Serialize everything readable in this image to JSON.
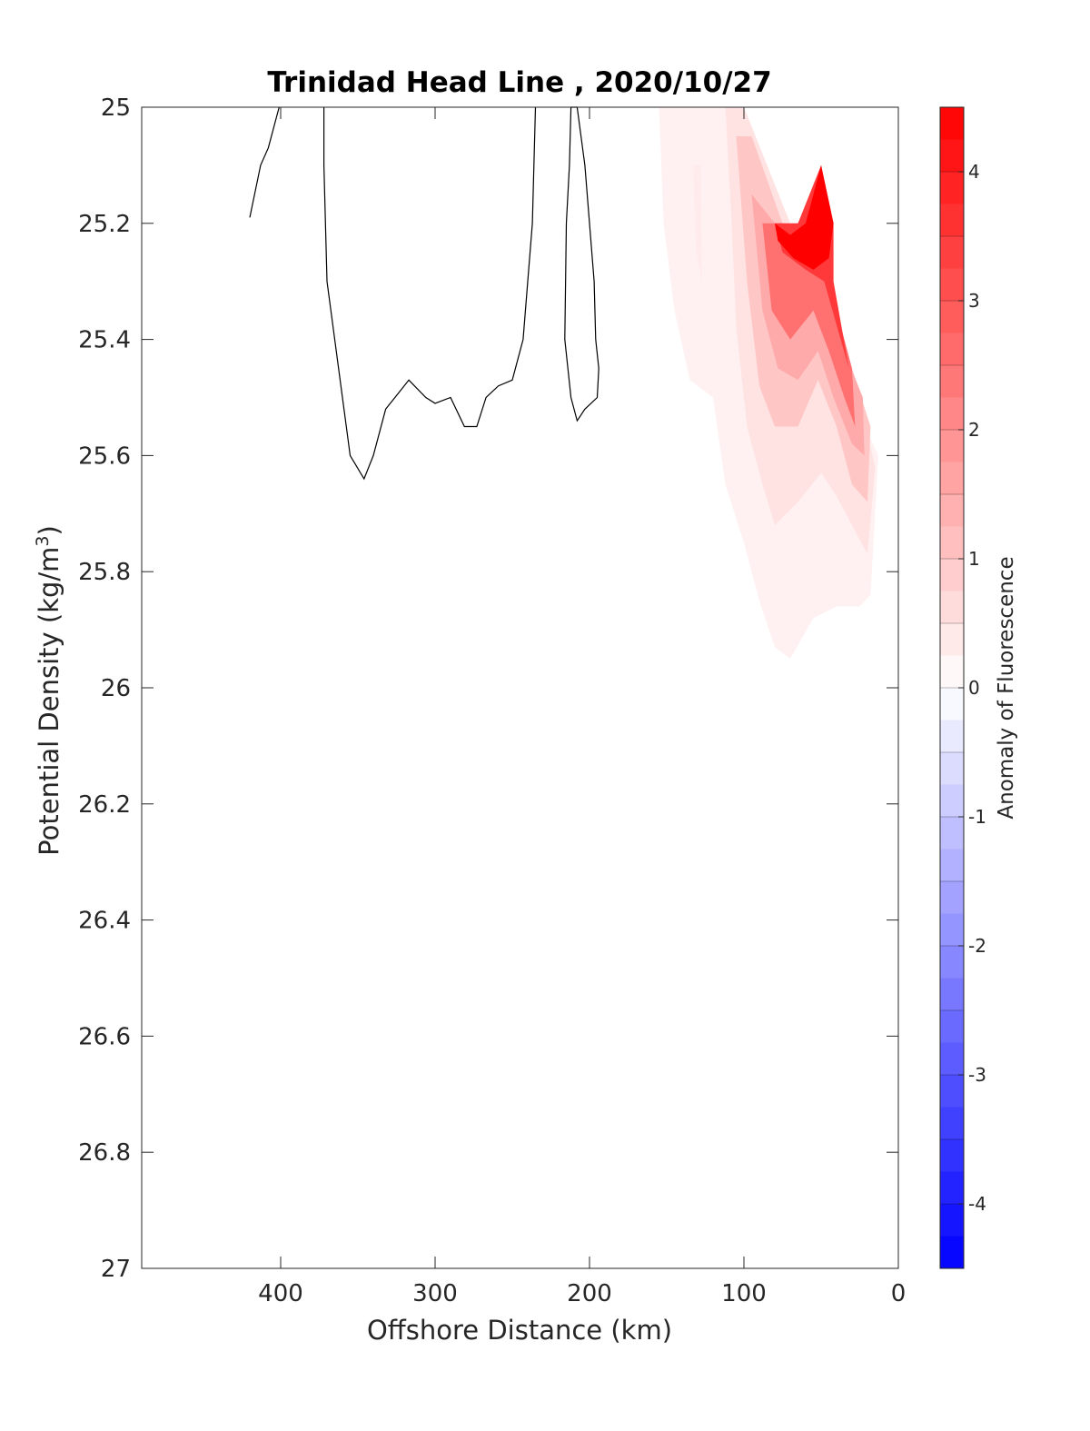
{
  "chart_data": {
    "type": "heatmap",
    "title": "Trinidad Head Line , 2020/10/27",
    "xlabel": "Offshore Distance (km)",
    "ylabel_main": "Potential Density (kg/m",
    "ylabel_sup": "3",
    "ylabel_tail": ")",
    "xlim": [
      490,
      0
    ],
    "x_reversed": true,
    "ylim": [
      25,
      27
    ],
    "y_reversed": true,
    "xticks": [
      {
        "value": 400,
        "label": "400"
      },
      {
        "value": 300,
        "label": "300"
      },
      {
        "value": 200,
        "label": "200"
      },
      {
        "value": 100,
        "label": "100"
      },
      {
        "value": 0,
        "label": "0"
      }
    ],
    "yticks": [
      {
        "value": 25.0,
        "label": "25"
      },
      {
        "value": 25.2,
        "label": "25.2"
      },
      {
        "value": 25.4,
        "label": "25.4"
      },
      {
        "value": 25.6,
        "label": "25.6"
      },
      {
        "value": 25.8,
        "label": "25.8"
      },
      {
        "value": 26.0,
        "label": "26"
      },
      {
        "value": 26.2,
        "label": "26.2"
      },
      {
        "value": 26.4,
        "label": "26.4"
      },
      {
        "value": 26.6,
        "label": "26.6"
      },
      {
        "value": 26.8,
        "label": "26.8"
      },
      {
        "value": 27.0,
        "label": "27"
      }
    ],
    "colorbar": {
      "label": "Anomaly of Fluorescence",
      "range": [
        -4.5,
        4.5
      ],
      "step": 0.25,
      "min_color": "#0000ff",
      "mid_color": "#ffffff",
      "max_color": "#ff0000",
      "ticks": [
        {
          "value": 4,
          "label": "4"
        },
        {
          "value": 3,
          "label": "3"
        },
        {
          "value": 2,
          "label": "2"
        },
        {
          "value": 1,
          "label": "1"
        },
        {
          "value": 0,
          "label": "0"
        },
        {
          "value": -1,
          "label": "-1"
        },
        {
          "value": -2,
          "label": "-2"
        },
        {
          "value": -3,
          "label": "-3"
        },
        {
          "value": -4,
          "label": "-4"
        }
      ]
    },
    "filled_contours": [
      {
        "level": 0.25,
        "points": [
          [
            155,
            25.0
          ],
          [
            152,
            25.2
          ],
          [
            145,
            25.35
          ],
          [
            135,
            25.47
          ],
          [
            120,
            25.5
          ],
          [
            112,
            25.65
          ],
          [
            100,
            25.75
          ],
          [
            90,
            25.85
          ],
          [
            80,
            25.93
          ],
          [
            70,
            25.95
          ],
          [
            55,
            25.88
          ],
          [
            40,
            25.86
          ],
          [
            25,
            25.86
          ],
          [
            18,
            25.84
          ],
          [
            13,
            25.6
          ],
          [
            30,
            25.5
          ],
          [
            55,
            25.3
          ],
          [
            80,
            25.2
          ],
          [
            100,
            25.0
          ]
        ]
      },
      {
        "level": 0.5,
        "points": [
          [
            112,
            25.0
          ],
          [
            108,
            25.2
          ],
          [
            105,
            25.38
          ],
          [
            98,
            25.55
          ],
          [
            88,
            25.65
          ],
          [
            80,
            25.72
          ],
          [
            65,
            25.68
          ],
          [
            50,
            25.63
          ],
          [
            40,
            25.67
          ],
          [
            30,
            25.72
          ],
          [
            20,
            25.77
          ],
          [
            15,
            25.62
          ],
          [
            25,
            25.5
          ],
          [
            45,
            25.3
          ],
          [
            70,
            25.2
          ],
          [
            100,
            25.0
          ]
        ]
      },
      {
        "level": 1.0,
        "points": [
          [
            105,
            25.05
          ],
          [
            98,
            25.3
          ],
          [
            90,
            25.48
          ],
          [
            80,
            25.55
          ],
          [
            65,
            25.55
          ],
          [
            52,
            25.47
          ],
          [
            40,
            25.55
          ],
          [
            30,
            25.65
          ],
          [
            20,
            25.68
          ],
          [
            18,
            25.55
          ],
          [
            30,
            25.45
          ],
          [
            50,
            25.3
          ],
          [
            75,
            25.2
          ],
          [
            95,
            25.05
          ]
        ]
      },
      {
        "level": 1.5,
        "points": [
          [
            95,
            25.15
          ],
          [
            88,
            25.35
          ],
          [
            78,
            25.45
          ],
          [
            65,
            25.47
          ],
          [
            52,
            25.42
          ],
          [
            42,
            25.5
          ],
          [
            30,
            25.58
          ],
          [
            22,
            25.6
          ],
          [
            23,
            25.5
          ],
          [
            35,
            25.42
          ],
          [
            55,
            25.3
          ],
          [
            80,
            25.2
          ]
        ]
      },
      {
        "level": 2.5,
        "points": [
          [
            88,
            25.2
          ],
          [
            82,
            25.35
          ],
          [
            70,
            25.4
          ],
          [
            55,
            25.35
          ],
          [
            45,
            25.42
          ],
          [
            35,
            25.5
          ],
          [
            28,
            25.55
          ],
          [
            30,
            25.45
          ],
          [
            42,
            25.33
          ],
          [
            60,
            25.22
          ],
          [
            75,
            25.2
          ]
        ]
      },
      {
        "level": 3.5,
        "points": [
          [
            80,
            25.2
          ],
          [
            65,
            25.2
          ],
          [
            50,
            25.1
          ],
          [
            42,
            25.2
          ],
          [
            42,
            25.3
          ],
          [
            32,
            25.45
          ],
          [
            48,
            25.3
          ],
          [
            60,
            25.28
          ],
          [
            75,
            25.25
          ]
        ]
      },
      {
        "level": 4.5,
        "points": [
          [
            80,
            25.2
          ],
          [
            70,
            25.22
          ],
          [
            60,
            25.2
          ],
          [
            50,
            25.1
          ],
          [
            42,
            25.2
          ],
          [
            45,
            25.26
          ],
          [
            55,
            25.28
          ],
          [
            68,
            25.26
          ],
          [
            78,
            25.23
          ]
        ]
      },
      {
        "level": 0.35,
        "points": [
          [
            133,
            25.1
          ],
          [
            128,
            25.1
          ],
          [
            127,
            25.3
          ],
          [
            131,
            25.25
          ]
        ]
      }
    ],
    "contour_lines": [
      [
        [
          420,
          25.19
        ],
        [
          413,
          25.1
        ],
        [
          408,
          25.07
        ],
        [
          401,
          25.0
        ]
      ],
      [
        [
          372,
          25.0
        ],
        [
          372,
          25.1
        ],
        [
          370,
          25.3
        ],
        [
          365,
          25.4
        ],
        [
          360,
          25.5
        ],
        [
          355,
          25.6
        ],
        [
          346,
          25.64
        ],
        [
          340,
          25.6
        ],
        [
          332,
          25.52
        ],
        [
          323,
          25.49
        ],
        [
          317,
          25.47
        ],
        [
          306,
          25.5
        ],
        [
          300,
          25.51
        ],
        [
          290,
          25.5
        ],
        [
          281,
          25.55
        ],
        [
          273,
          25.55
        ],
        [
          267,
          25.5
        ],
        [
          259,
          25.48
        ],
        [
          250,
          25.47
        ],
        [
          243,
          25.4
        ],
        [
          237,
          25.2
        ],
        [
          235,
          25.0
        ]
      ],
      [
        [
          208,
          25.0
        ],
        [
          212,
          25.0
        ],
        [
          213,
          25.1
        ],
        [
          215,
          25.2
        ],
        [
          216,
          25.4
        ],
        [
          212,
          25.5
        ],
        [
          208,
          25.54
        ],
        [
          203,
          25.52
        ],
        [
          195,
          25.5
        ],
        [
          194,
          25.45
        ],
        [
          196,
          25.4
        ],
        [
          197,
          25.3
        ],
        [
          200,
          25.2
        ],
        [
          203,
          25.1
        ],
        [
          208,
          25.0
        ]
      ]
    ]
  }
}
